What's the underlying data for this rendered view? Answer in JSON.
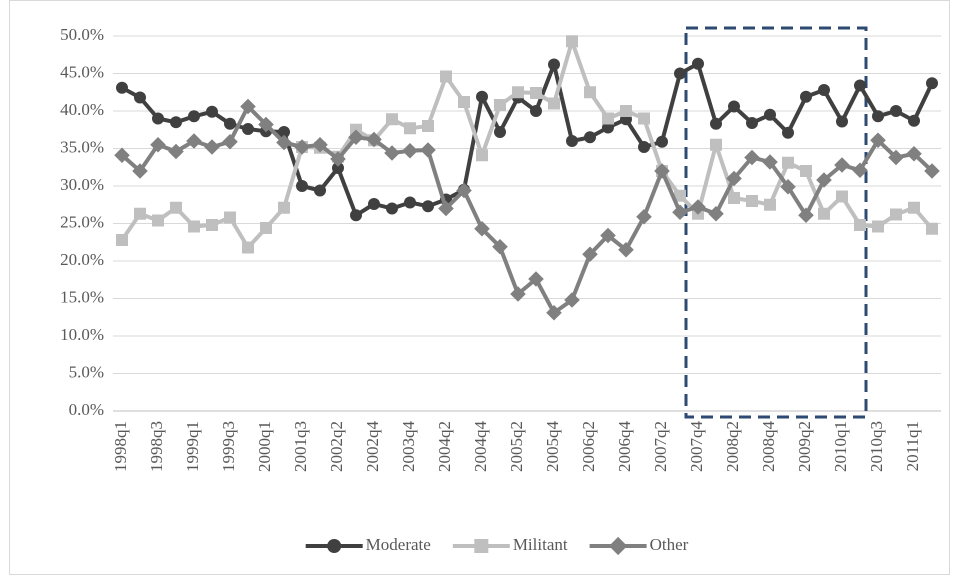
{
  "chart_data": {
    "type": "line",
    "categories": [
      "1998q1",
      null,
      "1998q3",
      null,
      "1999q1",
      null,
      "1999q3",
      null,
      "2000q1",
      null,
      "2001q3",
      null,
      "2002q2",
      null,
      "2002q4",
      null,
      "2003q4",
      null,
      "2004q2",
      null,
      "2004q4",
      null,
      "2005q2",
      null,
      "2005q4",
      null,
      "2006q2",
      null,
      "2006q4",
      null,
      "2007q2",
      null,
      "2007q4",
      null,
      "2008q2",
      null,
      "2008q4",
      null,
      "2009q2",
      null,
      "2010q1",
      null,
      "2010q3",
      null,
      "2011q1",
      null
    ],
    "series": [
      {
        "name": "Moderate",
        "color": "#404040",
        "marker": "circle",
        "values": [
          43.1,
          41.8,
          39.0,
          38.5,
          39.3,
          39.9,
          38.3,
          37.6,
          37.3,
          37.2,
          30.0,
          29.4,
          32.4,
          26.1,
          27.6,
          27.0,
          27.8,
          27.3,
          28.2,
          29.5,
          41.9,
          37.2,
          41.8,
          40.0,
          46.2,
          36.0,
          36.5,
          37.8,
          38.9,
          35.2,
          35.9,
          45.0,
          46.3,
          38.3,
          40.6,
          38.4,
          39.5,
          37.1,
          41.9,
          42.8,
          38.6,
          43.4,
          39.3,
          40.0,
          38.7,
          43.7
        ]
      },
      {
        "name": "Militant",
        "color": "#bfbfbf",
        "marker": "square",
        "values": [
          22.8,
          26.3,
          25.4,
          27.1,
          24.6,
          24.8,
          25.8,
          21.8,
          24.4,
          27.1,
          35.2,
          35.1,
          33.9,
          37.5,
          36.1,
          38.9,
          37.7,
          38.0,
          44.6,
          41.2,
          34.1,
          40.8,
          42.5,
          42.4,
          41.0,
          49.3,
          42.5,
          39.0,
          40.0,
          39.0,
          32.0,
          28.7,
          26.3,
          35.5,
          28.4,
          28.0,
          27.5,
          33.1,
          32.0,
          26.3,
          28.6,
          24.8,
          24.6,
          26.2,
          27.1,
          24.3
        ]
      },
      {
        "name": "Other",
        "color": "#808080",
        "marker": "diamond",
        "values": [
          34.1,
          32.0,
          35.5,
          34.6,
          36.0,
          35.2,
          35.9,
          40.6,
          38.2,
          35.8,
          35.2,
          35.5,
          33.6,
          36.5,
          36.2,
          34.4,
          34.7,
          34.8,
          27.0,
          29.4,
          24.3,
          21.9,
          15.6,
          17.6,
          13.1,
          14.8,
          20.9,
          23.4,
          21.5,
          25.9,
          32.0,
          26.5,
          27.2,
          26.3,
          31.0,
          33.8,
          33.2,
          29.9,
          26.1,
          30.8,
          32.8,
          32.1,
          36.1,
          33.8,
          34.3,
          32.0
        ]
      }
    ],
    "ylim": [
      0,
      50
    ],
    "yticks": [
      {
        "value": 0,
        "label": "0.0%"
      },
      {
        "value": 5,
        "label": "5.0%"
      },
      {
        "value": 10,
        "label": "10.0%"
      },
      {
        "value": 15,
        "label": "15.0%"
      },
      {
        "value": 20,
        "label": "20.0%"
      },
      {
        "value": 25,
        "label": "25.0%"
      },
      {
        "value": 30,
        "label": "30.0%"
      },
      {
        "value": 35,
        "label": "35.0%"
      },
      {
        "value": 40,
        "label": "40.0%"
      },
      {
        "value": 45,
        "label": "45.0%"
      },
      {
        "value": 50,
        "label": "50.0%"
      }
    ],
    "grid": true,
    "legend": "bottom"
  }
}
